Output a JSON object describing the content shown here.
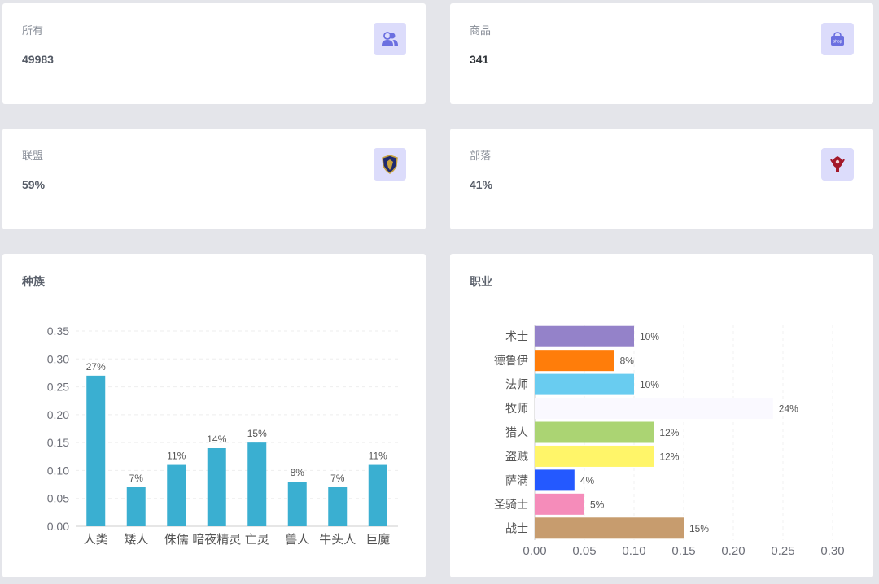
{
  "stats": [
    {
      "label": "所有",
      "value": "49983",
      "icon": "users-icon"
    },
    {
      "label": "商品",
      "value": "341",
      "icon": "shop-bag-icon",
      "icon_text": "shop"
    },
    {
      "label": "联盟",
      "value": "59%",
      "icon": "alliance-crest-icon"
    },
    {
      "label": "部落",
      "value": "41%",
      "icon": "horde-crest-icon"
    }
  ],
  "colors": {
    "icon_bg": "#dcdcfb",
    "race_bar": "#3aafd1",
    "alliance": "#2a3a8c",
    "horde": "#a3182a"
  },
  "chart_data": [
    {
      "type": "bar",
      "title": "种族",
      "categories": [
        "人类",
        "矮人",
        "侏儒",
        "暗夜精灵",
        "亡灵",
        "兽人",
        "牛头人",
        "巨魔"
      ],
      "values": [
        0.27,
        0.07,
        0.11,
        0.14,
        0.15,
        0.08,
        0.07,
        0.11
      ],
      "data_labels": [
        "27%",
        "7%",
        "11%",
        "14%",
        "15%",
        "8%",
        "7%",
        "11%"
      ],
      "ylim": [
        0,
        0.35
      ],
      "yticks": [
        "0.00",
        "0.05",
        "0.10",
        "0.15",
        "0.20",
        "0.25",
        "0.30",
        "0.35"
      ],
      "grid": "dashed horizontal",
      "color": "#3aafd1"
    },
    {
      "type": "bar",
      "orientation": "horizontal",
      "title": "职业",
      "categories": [
        "术士",
        "德鲁伊",
        "法师",
        "牧师",
        "猎人",
        "盗贼",
        "萨满",
        "圣骑士",
        "战士"
      ],
      "values": [
        0.1,
        0.08,
        0.1,
        0.24,
        0.12,
        0.12,
        0.04,
        0.05,
        0.15
      ],
      "data_labels": [
        "10%",
        "8%",
        "10%",
        "24%",
        "12%",
        "12%",
        "4%",
        "5%",
        "15%"
      ],
      "colors": [
        "#9482c9",
        "#ff7d0a",
        "#69ccf0",
        "#faf9ff",
        "#abd473",
        "#fff569",
        "#2459ff",
        "#f58cba",
        "#c79c6e"
      ],
      "xlim": [
        0,
        0.3
      ],
      "xticks": [
        "0.00",
        "0.05",
        "0.10",
        "0.15",
        "0.20",
        "0.25",
        "0.30"
      ],
      "grid": "dashed vertical"
    }
  ]
}
